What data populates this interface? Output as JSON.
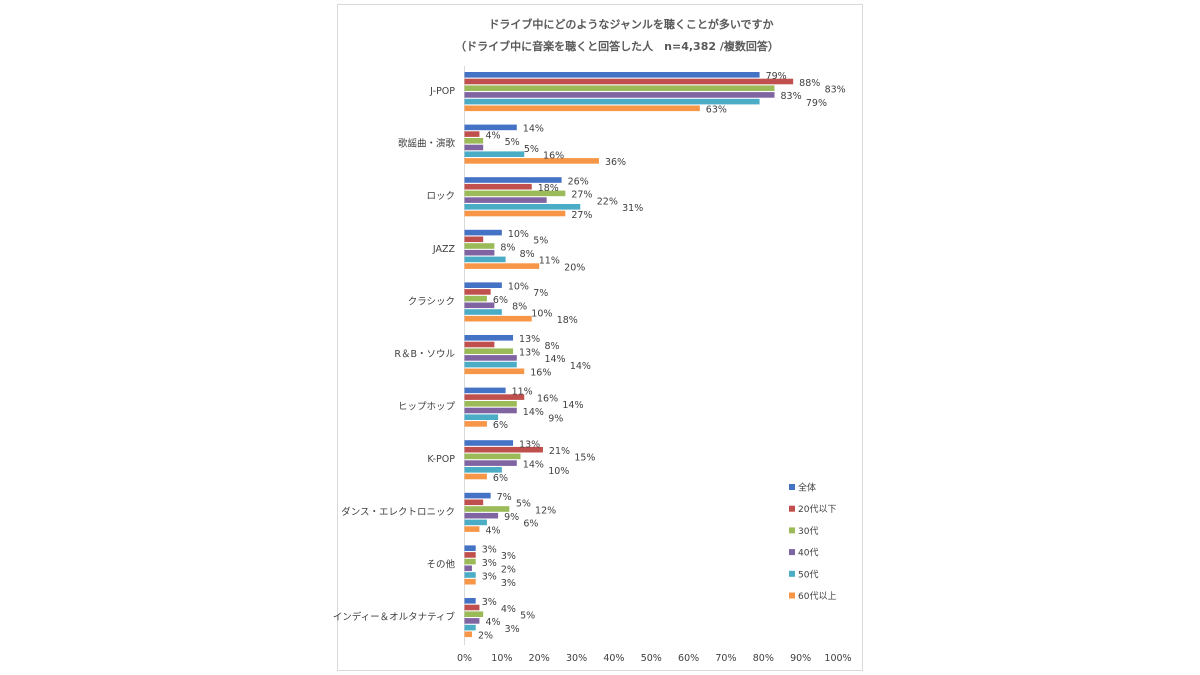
{
  "chart_data": {
    "type": "bar",
    "orientation": "horizontal",
    "title": "ドライブ中にどのようなジャンルを聴くことが多いですか",
    "subtitle": "（ドライブ中に音楽を聴くと回答した人　n=4,382 /複数回答）",
    "categories": [
      "J-POP",
      "歌謡曲・演歌",
      "ロック",
      "JAZZ",
      "クラシック",
      "R＆B・ソウル",
      "ヒップホップ",
      "K-POP",
      "ダンス・エレクトロニック",
      "その他",
      "インディー＆オルタナティブ"
    ],
    "series": [
      {
        "name": "全体",
        "color": "#4472c4",
        "values": [
          79,
          14,
          26,
          10,
          10,
          13,
          11,
          13,
          7,
          3,
          3
        ]
      },
      {
        "name": "20代以下",
        "color": "#c0504d",
        "values": [
          88,
          4,
          18,
          5,
          7,
          8,
          16,
          21,
          5,
          3,
          4
        ]
      },
      {
        "name": "30代",
        "color": "#9bbb59",
        "values": [
          83,
          5,
          27,
          8,
          6,
          13,
          14,
          15,
          12,
          3,
          5
        ]
      },
      {
        "name": "40代",
        "color": "#8064a2",
        "values": [
          83,
          5,
          22,
          8,
          8,
          14,
          14,
          14,
          9,
          2,
          4
        ]
      },
      {
        "name": "50代",
        "color": "#4bacc6",
        "values": [
          79,
          16,
          31,
          11,
          10,
          14,
          9,
          10,
          6,
          3,
          3
        ]
      },
      {
        "name": "60代以上",
        "color": "#f79646",
        "values": [
          63,
          36,
          27,
          20,
          18,
          16,
          6,
          6,
          4,
          3,
          2
        ]
      }
    ],
    "xlim": [
      0,
      100
    ],
    "xticks": [
      "0%",
      "10%",
      "20%",
      "30%",
      "40%",
      "50%",
      "60%",
      "70%",
      "80%",
      "90%",
      "100%"
    ],
    "value_suffix": "%",
    "legend": "right",
    "grid": false
  }
}
